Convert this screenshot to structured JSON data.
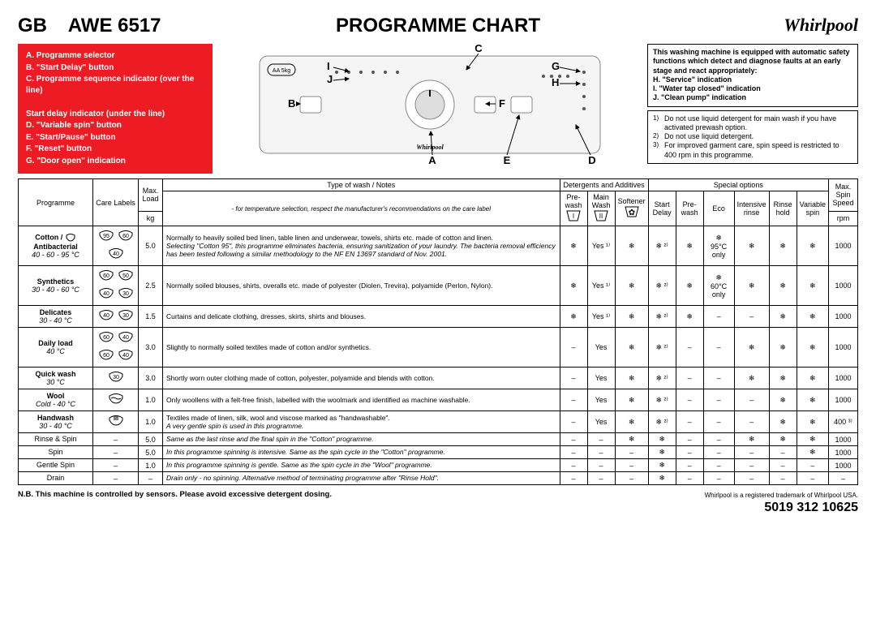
{
  "header": {
    "gb": "GB",
    "model": "AWE 6517",
    "title": "PROGRAMME CHART",
    "brand": "Whirlpool"
  },
  "legend": {
    "items": [
      "A. Programme selector",
      "B. \"Start Delay\" button",
      "C. Programme sequence indicator (over the line)",
      "",
      "Start delay indicator (under the line)",
      "D. \"Variable spin\" button",
      "E. \"Start/Pause\" button",
      "F. \"Reset\" button",
      "G. \"Door open\" indication"
    ]
  },
  "panel_letters": [
    "A",
    "B",
    "C",
    "D",
    "E",
    "F",
    "G",
    "H",
    "I",
    "J"
  ],
  "panel_tiny": {
    "aa": "AA 5kg",
    "anti": "Antibacterial\nAWE 6517",
    "row1": [
      "Prewash",
      "Wash",
      "Rinse",
      "Rinse hold",
      "Spin Drain"
    ],
    "row2": [
      "1h.",
      "3h.",
      "6h.",
      "9h.",
      "12h."
    ],
    "btn_start": "Start\nDelay",
    "btn_pause": "Start\nPause",
    "btn_reset": "Reset",
    "dial": [
      "95°",
      "60°",
      "40°",
      "Cotton",
      "Synthetics",
      "Delicates",
      "Daily load",
      "Quick wash",
      "Wool",
      "Handwash"
    ],
    "right": [
      "Door\nopen",
      "Service",
      "Water\ntab",
      "Clean\npump"
    ],
    "options": [
      "Prewash",
      "Intensive\nrinse",
      "Eco",
      "Rinse\nhold",
      "Variable\nspin"
    ]
  },
  "notice1": {
    "intro": "This washing machine is equipped with automatic safety functions which detect and diagnose faults at an early stage and react appropriately:",
    "items": [
      "H. \"Service\" indication",
      "I. \"Water tap closed\" indication",
      "J. \"Clean pump\" indication"
    ]
  },
  "notice2": {
    "items": [
      "Do not use liquid detergent for main wash if you have activated prewash option.",
      "Do not use liquid detergent.",
      "For improved garment care, spin speed is restricted to 400 rpm in this programme."
    ]
  },
  "table": {
    "head": {
      "programme": "Programme",
      "care": "Care Labels",
      "maxload": "Max. Load",
      "kg": "kg",
      "type": "Type of wash / Notes",
      "type_sub": "- for temperature selection, respect the manufacturer's recommendations on the care label",
      "detergents": "Detergents and Additives",
      "prewash_d": "Pre-wash",
      "mainwash": "Main Wash",
      "softener": "Softener",
      "special": "Special options",
      "startdelay": "Start Delay",
      "prewash_o": "Pre-wash",
      "eco": "Eco",
      "intensive": "Intensive rinse",
      "rinsehold": "Rinse hold",
      "varspin": "Variable spin",
      "maxspin": "Max. Spin Speed",
      "rpm": "rpm"
    },
    "rows": [
      {
        "prog_bold": "Cotton / ",
        "prog_icon": "tub",
        "prog_bold2": "Antibacterial",
        "prog_italic": "40 - 60 - 95 °C",
        "care": [
          "95",
          "60",
          "40"
        ],
        "load": "5.0",
        "notes": "Normally to heavily soiled bed linen, table linen and underwear, towels, shirts etc. made of cotton and linen.",
        "notes_i": "Selecting \"Cotton 95\", this programme eliminates bacteria, ensuring sanitization of your laundry. The bacteria removal efficiency has been tested following a similar methodology to the NF EN 13697 standard of Nov. 2001.",
        "pre": "❄",
        "main": "Yes ¹⁾",
        "soft": "❄",
        "sd": "❄ ²⁾",
        "pw": "❄",
        "eco": "❄\n95°C\nonly",
        "ir": "❄",
        "rh": "❄",
        "vs": "❄",
        "rpm": "1000"
      },
      {
        "prog_bold": "Synthetics",
        "prog_italic": "30 - 40 - 60 °C",
        "care": [
          "60",
          "50",
          "40",
          "30"
        ],
        "load": "2.5",
        "notes": "Normally soiled blouses, shirts, overalls etc. made of polyester (Diolen, Trevira), polyamide (Perlon, Nylon).",
        "pre": "❄",
        "main": "Yes ¹⁾",
        "soft": "❄",
        "sd": "❄ ²⁾",
        "pw": "❄",
        "eco": "❄\n60°C\nonly",
        "ir": "❄",
        "rh": "❄",
        "vs": "❄",
        "rpm": "1000"
      },
      {
        "prog_bold": "Delicates",
        "prog_italic": "30 - 40 °C",
        "care": [
          "40",
          "30"
        ],
        "load": "1.5",
        "notes": "Curtains and delicate clothing, dresses, skirts, shirts and blouses.",
        "pre": "❄",
        "main": "Yes ¹⁾",
        "soft": "❄",
        "sd": "❄ ²⁾",
        "pw": "❄",
        "eco": "–",
        "ir": "–",
        "rh": "❄",
        "vs": "❄",
        "rpm": "1000"
      },
      {
        "prog_bold": "Daily load",
        "prog_italic": "40 °C",
        "care": [
          "60",
          "40",
          "60",
          "40"
        ],
        "load": "3.0",
        "notes": "Slightly to normally soiled textiles made of cotton and/or synthetics.",
        "pre": "–",
        "main": "Yes",
        "soft": "❄",
        "sd": "❄ ²⁾",
        "pw": "–",
        "eco": "–",
        "ir": "❄",
        "rh": "❄",
        "vs": "❄",
        "rpm": "1000"
      },
      {
        "prog_bold": "Quick wash",
        "prog_italic": "30 °C",
        "care": [
          "30"
        ],
        "load": "3.0",
        "notes": "Shortly worn outer clothing made of cotton, polyester, polyamide and blends with cotton.",
        "pre": "–",
        "main": "Yes",
        "soft": "❄",
        "sd": "❄ ²⁾",
        "pw": "–",
        "eco": "–",
        "ir": "❄",
        "rh": "❄",
        "vs": "❄",
        "rpm": "1000"
      },
      {
        "prog_bold": "Wool",
        "prog_italic": "Cold - 40 °C",
        "care": [
          "wool"
        ],
        "load": "1.0",
        "notes": "Only woollens with a felt-free finish, labelled with the woolmark and identified as machine washable.",
        "pre": "–",
        "main": "Yes",
        "soft": "❄",
        "sd": "❄ ²⁾",
        "pw": "–",
        "eco": "–",
        "ir": "–",
        "rh": "❄",
        "vs": "❄",
        "rpm": "1000"
      },
      {
        "prog_bold": "Handwash",
        "prog_italic": "30 - 40 °C",
        "care": [
          "hand"
        ],
        "load": "1.0",
        "notes": "Textiles made of linen, silk, wool and viscose marked as \"handwashable\".",
        "notes_i": "A very gentle spin is used in this programme.",
        "pre": "–",
        "main": "Yes",
        "soft": "❄",
        "sd": "❄ ²⁾",
        "pw": "–",
        "eco": "–",
        "ir": "–",
        "rh": "❄",
        "vs": "❄",
        "rpm": "400 ³⁾"
      },
      {
        "prog_plain": "Rinse & Spin",
        "care_dash": "–",
        "load": "5.0",
        "notes_i_only": "Same as the last rinse and the final spin in the \"Cotton\" programme.",
        "pre": "–",
        "main": "–",
        "soft": "❄",
        "sd": "❄",
        "pw": "–",
        "eco": "–",
        "ir": "❄",
        "rh": "❄",
        "vs": "❄",
        "rpm": "1000"
      },
      {
        "prog_plain": "Spin",
        "care_dash": "–",
        "load": "5.0",
        "notes_i_only": "In this programme spinning is intensive. Same as the spin cycle in the \"Cotton\" programme.",
        "pre": "–",
        "main": "–",
        "soft": "–",
        "sd": "❄",
        "pw": "–",
        "eco": "–",
        "ir": "–",
        "rh": "–",
        "vs": "❄",
        "rpm": "1000"
      },
      {
        "prog_plain": "Gentle Spin",
        "care_dash": "–",
        "load": "1.0",
        "notes_i_only": "In this programme spinning is gentle. Same as the spin cycle in the \"Wool\" programme.",
        "pre": "–",
        "main": "–",
        "soft": "–",
        "sd": "❄",
        "pw": "–",
        "eco": "–",
        "ir": "–",
        "rh": "–",
        "vs": "–",
        "rpm": "1000"
      },
      {
        "prog_plain": "Drain",
        "care_dash": "–",
        "load": "–",
        "notes_i_only": "Drain only - no spinning. Alternative method of terminating programme after \"Rinse Hold\".",
        "pre": "–",
        "main": "–",
        "soft": "–",
        "sd": "❄",
        "pw": "–",
        "eco": "–",
        "ir": "–",
        "rh": "–",
        "vs": "–",
        "rpm": "–"
      }
    ]
  },
  "footer": {
    "nb": "N.B. This machine is controlled by sensors. Please avoid excessive detergent dosing.",
    "trademark": "Whirlpool is a registered trademark of Whirlpool USA.",
    "docnum": "5019 312 10625"
  },
  "detergent_icons": {
    "prewash": "I",
    "mainwash": "II",
    "softener": "flower"
  }
}
